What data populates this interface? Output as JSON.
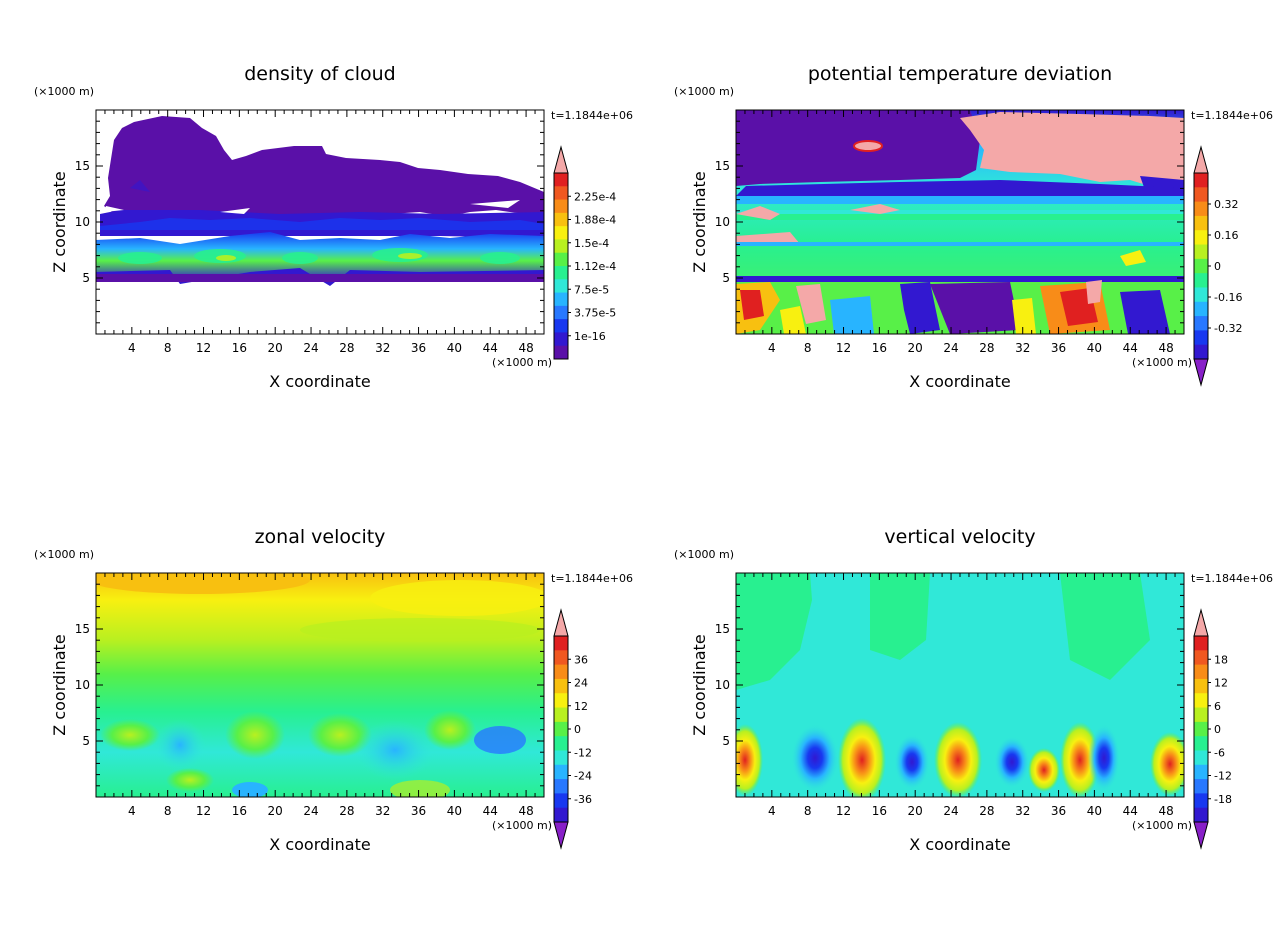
{
  "chart_data": [
    {
      "type": "heatmap",
      "title": "density of cloud",
      "xlabel": "X coordinate",
      "ylabel": "Z coordinate",
      "x_unit": "(×1000 m)",
      "y_unit": "(×1000 m)",
      "time_label": "t=1.1844e+06",
      "xlim": [
        0,
        50
      ],
      "ylim": [
        0,
        20
      ],
      "x_ticks": [
        "4",
        "8",
        "12",
        "16",
        "20",
        "24",
        "28",
        "32",
        "36",
        "40",
        "44",
        "48"
      ],
      "y_ticks": [
        "5",
        "10",
        "15"
      ],
      "colorbar": {
        "labels": [
          "2.25e-4",
          "1.88e-4",
          "1.5e-4",
          "1.12e-4",
          "7.5e-5",
          "3.75e-5",
          "1e-16"
        ],
        "extend": "max",
        "colors": [
          "#5a10a8",
          "#3218d0",
          "#1838f0",
          "#2878ff",
          "#28b4ff",
          "#30e8d8",
          "#28f090",
          "#58f048",
          "#b8f020",
          "#f8f010",
          "#f8c010",
          "#f88c18",
          "#f05820",
          "#e02020"
        ]
      }
    },
    {
      "type": "heatmap",
      "title": "potential temperature deviation",
      "xlabel": "X coordinate",
      "ylabel": "Z coordinate",
      "x_unit": "(×1000 m)",
      "y_unit": "(×1000 m)",
      "time_label": "t=1.1844e+06",
      "xlim": [
        0,
        50
      ],
      "ylim": [
        0,
        20
      ],
      "x_ticks": [
        "4",
        "8",
        "12",
        "16",
        "20",
        "24",
        "28",
        "32",
        "36",
        "40",
        "44",
        "48"
      ],
      "y_ticks": [
        "5",
        "10",
        "15"
      ],
      "colorbar": {
        "labels": [
          "0.32",
          "0.16",
          "0",
          "-0.16",
          "-0.32"
        ],
        "extend": "both",
        "colors": [
          "#3218d0",
          "#1838f0",
          "#2878ff",
          "#28b4ff",
          "#30e8d8",
          "#28f090",
          "#58f048",
          "#b8f020",
          "#f8f010",
          "#f8c010",
          "#f88c18",
          "#f05820",
          "#e02020"
        ]
      }
    },
    {
      "type": "heatmap",
      "title": "zonal velocity",
      "xlabel": "X coordinate",
      "ylabel": "Z coordinate",
      "x_unit": "(×1000 m)",
      "y_unit": "(×1000 m)",
      "time_label": "t=1.1844e+06",
      "xlim": [
        0,
        50
      ],
      "ylim": [
        0,
        20
      ],
      "x_ticks": [
        "4",
        "8",
        "12",
        "16",
        "20",
        "24",
        "28",
        "32",
        "36",
        "40",
        "44",
        "48"
      ],
      "y_ticks": [
        "5",
        "10",
        "15"
      ],
      "colorbar": {
        "labels": [
          "36",
          "24",
          "12",
          "0",
          "-12",
          "-24",
          "-36"
        ],
        "extend": "both",
        "colors": [
          "#3218d0",
          "#1838f0",
          "#2878ff",
          "#28b4ff",
          "#30e8d8",
          "#28f090",
          "#58f048",
          "#b8f020",
          "#f8f010",
          "#f8c010",
          "#f88c18",
          "#f05820",
          "#e02020"
        ]
      }
    },
    {
      "type": "heatmap",
      "title": "vertical velocity",
      "xlabel": "X coordinate",
      "ylabel": "Z coordinate",
      "x_unit": "(×1000 m)",
      "y_unit": "(×1000 m)",
      "time_label": "t=1.1844e+06",
      "xlim": [
        0,
        50
      ],
      "ylim": [
        0,
        20
      ],
      "x_ticks": [
        "4",
        "8",
        "12",
        "16",
        "20",
        "24",
        "28",
        "32",
        "36",
        "40",
        "44",
        "48"
      ],
      "y_ticks": [
        "5",
        "10",
        "15"
      ],
      "colorbar": {
        "labels": [
          "18",
          "12",
          "6",
          "0",
          "-6",
          "-12",
          "-18"
        ],
        "extend": "both",
        "colors": [
          "#3218d0",
          "#1838f0",
          "#2878ff",
          "#28b4ff",
          "#30e8d8",
          "#28f090",
          "#58f048",
          "#b8f020",
          "#f8f010",
          "#f8c010",
          "#f88c18",
          "#f05820",
          "#e02020"
        ]
      }
    }
  ],
  "colors": {
    "extend_high": "#f4a8a8",
    "extend_low": "#8820c8",
    "cloud_dark": "#5a10a8"
  }
}
